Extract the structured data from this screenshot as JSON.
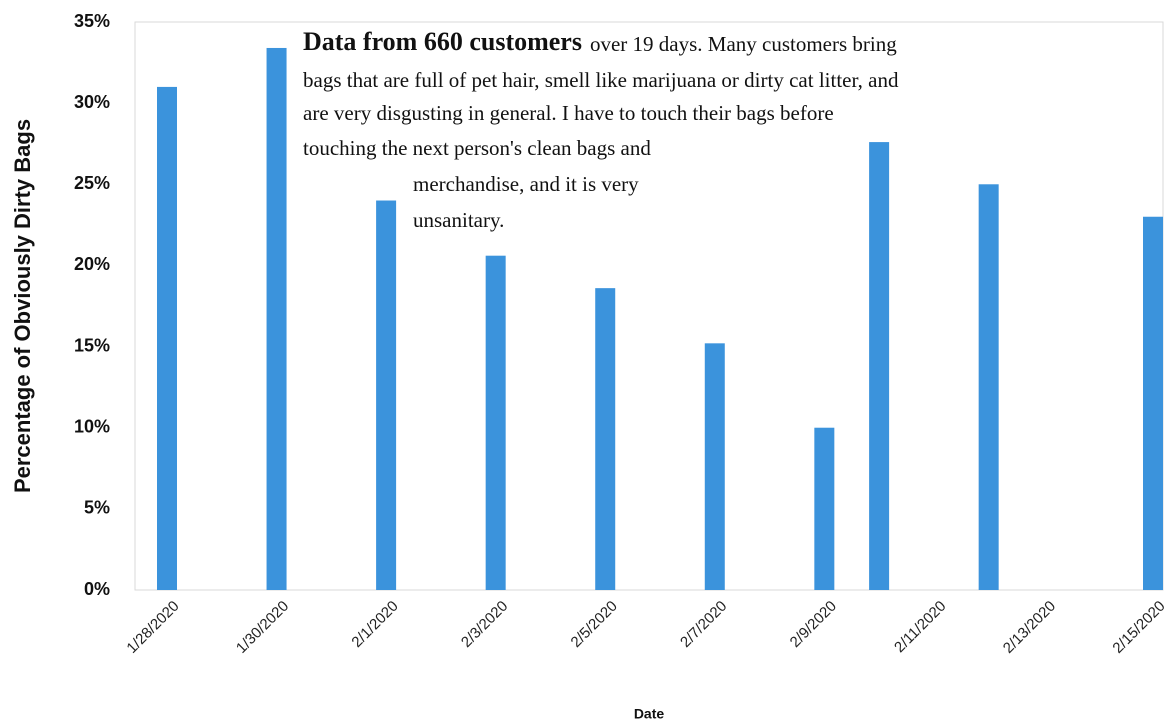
{
  "chart_data": {
    "type": "bar",
    "y_label": "Percentage of Obviously Dirty Bags",
    "x_label": "Date",
    "annotation": {
      "bold": "Data from 660 customers",
      "lines": [
        "over 19 days. Many customers bring",
        "bags that are full of pet hair, smell like marijuana or dirty cat litter, and",
        "are very disgusting in general. I have  to touch their bags before",
        "touching the next person's clean bags and",
        "merchandise, and it is very",
        "unsanitary."
      ]
    },
    "categories": [
      "1/28/2020",
      null,
      "1/30/2020",
      null,
      "2/1/2020",
      null,
      "2/3/2020",
      null,
      "2/5/2020",
      null,
      "2/7/2020",
      null,
      "2/9/2020",
      null,
      "2/11/2020",
      null,
      "2/13/2020",
      null,
      "2/15/2020"
    ],
    "values": [
      31,
      null,
      33.4,
      null,
      24,
      null,
      20.6,
      null,
      18.6,
      null,
      15.2,
      null,
      10,
      27.6,
      null,
      25,
      null,
      null,
      23
    ],
    "color": "#3b93dc",
    "ylim": [
      0,
      35
    ],
    "yticks": [
      {
        "value": 0,
        "label": "0%"
      },
      {
        "value": 5,
        "label": "5%"
      },
      {
        "value": 10,
        "label": "10%"
      },
      {
        "value": 15,
        "label": "15%"
      },
      {
        "value": 20,
        "label": "20%"
      },
      {
        "value": 25,
        "label": "25%"
      },
      {
        "value": 30,
        "label": "30%"
      },
      {
        "value": 35,
        "label": "35%"
      }
    ],
    "grid": false
  }
}
